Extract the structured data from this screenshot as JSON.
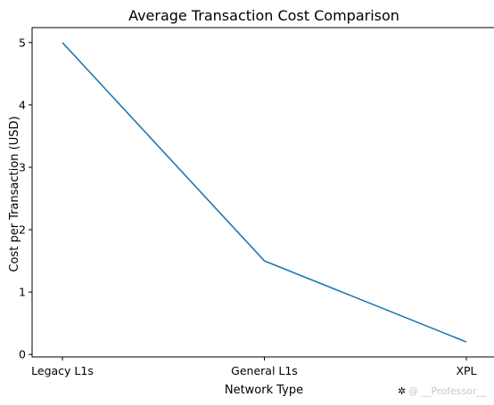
{
  "chart_data": {
    "type": "line",
    "title": "Average Transaction Cost Comparison",
    "xlabel": "Network Type",
    "ylabel": "Cost per Transaction (USD)",
    "categories": [
      "Legacy L1s",
      "General L1s",
      "XPL"
    ],
    "series": [
      {
        "values": [
          5.0,
          1.5,
          0.2
        ]
      }
    ],
    "ylim": [
      -0.04,
      5.24
    ],
    "yticks": [
      0,
      1,
      2,
      3,
      4,
      5
    ],
    "grid": false,
    "line_color": "#1f77b4"
  },
  "watermark": "@ __Professor__"
}
